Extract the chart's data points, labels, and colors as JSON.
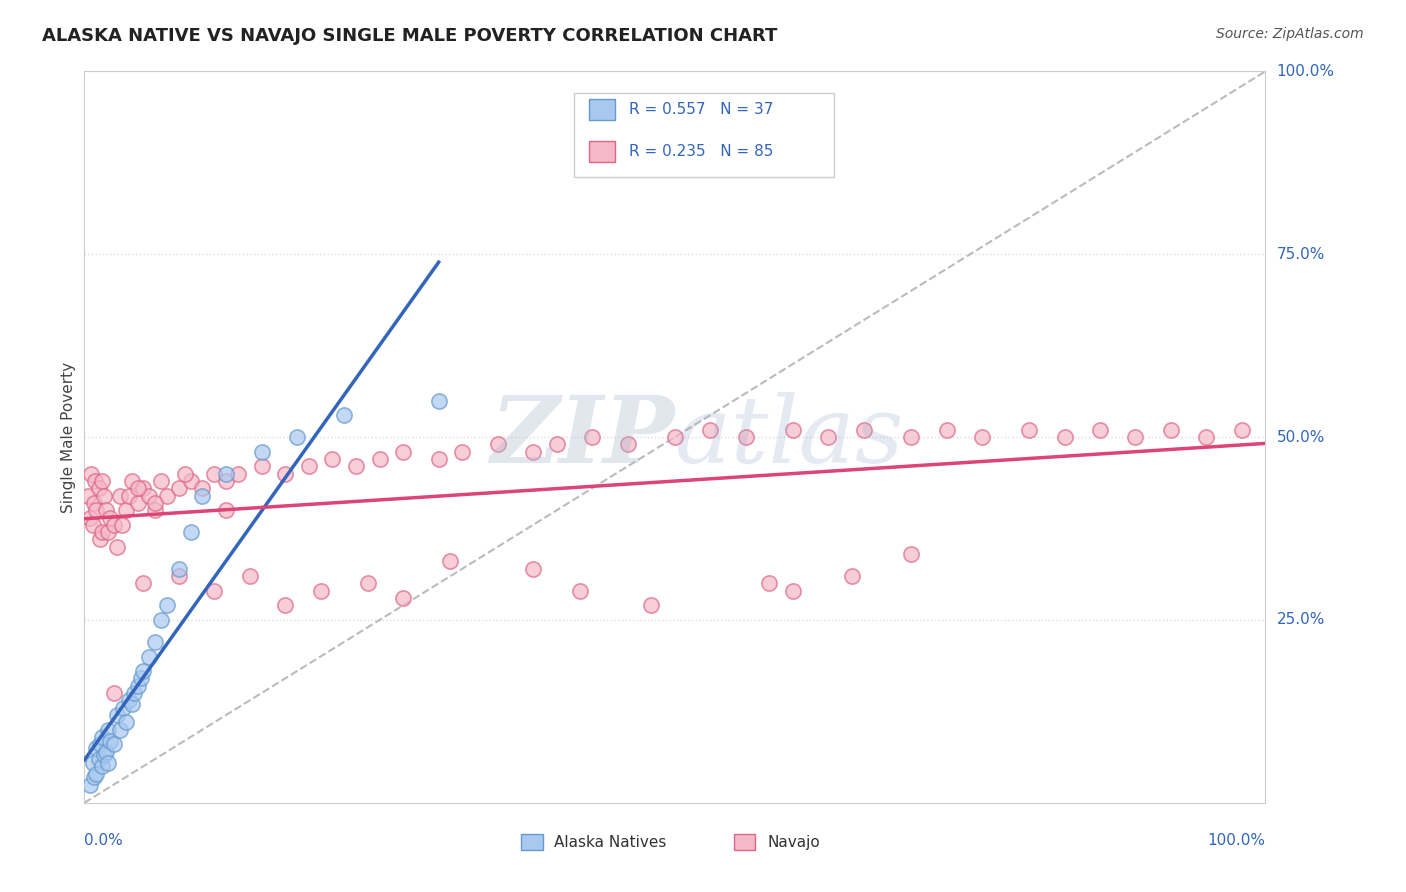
{
  "title": "ALASKA NATIVE VS NAVAJO SINGLE MALE POVERTY CORRELATION CHART",
  "source": "Source: ZipAtlas.com",
  "ylabel": "Single Male Poverty",
  "alaska_R": "0.557",
  "alaska_N": "37",
  "navajo_R": "0.235",
  "navajo_N": "85",
  "alaska_color": "#a8c8f0",
  "navajo_color": "#f5b8c8",
  "alaska_edge_color": "#6699cc",
  "navajo_edge_color": "#dd6688",
  "alaska_line_color": "#3366bb",
  "navajo_line_color": "#dd4477",
  "diag_line_color": "#bbbbbb",
  "grid_color": "#dddddd",
  "watermark_color": "#c8d8e8",
  "legend_alaska_label": "Alaska Natives",
  "legend_navajo_label": "Navajo",
  "alaska_x": [
    0.005,
    0.007,
    0.008,
    0.01,
    0.01,
    0.012,
    0.013,
    0.015,
    0.015,
    0.017,
    0.018,
    0.02,
    0.02,
    0.022,
    0.025,
    0.028,
    0.03,
    0.033,
    0.035,
    0.038,
    0.04,
    0.042,
    0.045,
    0.048,
    0.05,
    0.055,
    0.06,
    0.065,
    0.07,
    0.08,
    0.09,
    0.1,
    0.12,
    0.15,
    0.18,
    0.22,
    0.3
  ],
  "alaska_y": [
    0.025,
    0.055,
    0.035,
    0.04,
    0.075,
    0.06,
    0.08,
    0.05,
    0.09,
    0.065,
    0.07,
    0.055,
    0.1,
    0.085,
    0.08,
    0.12,
    0.1,
    0.13,
    0.11,
    0.14,
    0.135,
    0.15,
    0.16,
    0.17,
    0.18,
    0.2,
    0.22,
    0.25,
    0.27,
    0.32,
    0.37,
    0.42,
    0.45,
    0.48,
    0.5,
    0.53,
    0.55
  ],
  "navajo_x": [
    0.003,
    0.005,
    0.006,
    0.007,
    0.008,
    0.009,
    0.01,
    0.012,
    0.013,
    0.015,
    0.015,
    0.017,
    0.018,
    0.02,
    0.022,
    0.025,
    0.028,
    0.03,
    0.032,
    0.035,
    0.038,
    0.04,
    0.045,
    0.05,
    0.055,
    0.06,
    0.065,
    0.07,
    0.08,
    0.09,
    0.1,
    0.11,
    0.12,
    0.13,
    0.15,
    0.17,
    0.19,
    0.21,
    0.23,
    0.25,
    0.27,
    0.3,
    0.32,
    0.35,
    0.38,
    0.4,
    0.43,
    0.46,
    0.5,
    0.53,
    0.56,
    0.6,
    0.63,
    0.66,
    0.7,
    0.73,
    0.76,
    0.8,
    0.83,
    0.86,
    0.89,
    0.92,
    0.95,
    0.98,
    0.045,
    0.085,
    0.12,
    0.06,
    0.6,
    0.65,
    0.7,
    0.58,
    0.48,
    0.42,
    0.38,
    0.31,
    0.27,
    0.24,
    0.2,
    0.17,
    0.14,
    0.11,
    0.08,
    0.05,
    0.025
  ],
  "navajo_y": [
    0.42,
    0.39,
    0.45,
    0.38,
    0.41,
    0.44,
    0.4,
    0.43,
    0.36,
    0.37,
    0.44,
    0.42,
    0.4,
    0.37,
    0.39,
    0.38,
    0.35,
    0.42,
    0.38,
    0.4,
    0.42,
    0.44,
    0.41,
    0.43,
    0.42,
    0.4,
    0.44,
    0.42,
    0.43,
    0.44,
    0.43,
    0.45,
    0.44,
    0.45,
    0.46,
    0.45,
    0.46,
    0.47,
    0.46,
    0.47,
    0.48,
    0.47,
    0.48,
    0.49,
    0.48,
    0.49,
    0.5,
    0.49,
    0.5,
    0.51,
    0.5,
    0.51,
    0.5,
    0.51,
    0.5,
    0.51,
    0.5,
    0.51,
    0.5,
    0.51,
    0.5,
    0.51,
    0.5,
    0.51,
    0.43,
    0.45,
    0.4,
    0.41,
    0.29,
    0.31,
    0.34,
    0.3,
    0.27,
    0.29,
    0.32,
    0.33,
    0.28,
    0.3,
    0.29,
    0.27,
    0.31,
    0.29,
    0.31,
    0.3,
    0.15
  ],
  "ytick_vals": [
    0.25,
    0.5,
    0.75,
    1.0
  ],
  "ytick_labels": [
    "25.0%",
    "50.0%",
    "75.0%",
    "100.0%"
  ],
  "xlim": [
    0.0,
    1.0
  ],
  "ylim": [
    0.0,
    1.0
  ]
}
